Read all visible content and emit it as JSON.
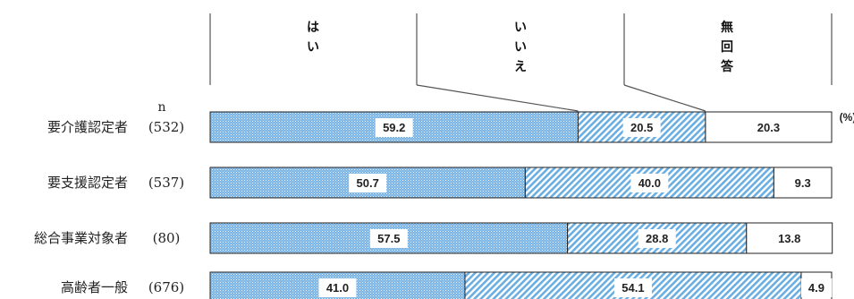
{
  "chart_data": {
    "type": "bar",
    "orientation": "horizontal",
    "stacked": true,
    "unit_label": "(%)",
    "n_header": "n",
    "categories": [
      "要介護認定者",
      "要支援認定者",
      "総合事業対象者",
      "高齢者一般"
    ],
    "n_values": [
      "(532)",
      "(537)",
      "(80)",
      "(676)"
    ],
    "series": [
      {
        "name": "はい",
        "header_lines": [
          "は",
          "い"
        ],
        "values": [
          59.2,
          50.7,
          57.5,
          41.0
        ],
        "value_labels": [
          "59.2",
          "50.7",
          "57.5",
          "41.0"
        ],
        "fill": "#7ab4e4",
        "pattern": "dots"
      },
      {
        "name": "いいえ",
        "header_lines": [
          "い",
          "い",
          "え"
        ],
        "values": [
          20.5,
          40.0,
          28.8,
          54.1
        ],
        "value_labels": [
          "20.5",
          "40.0",
          "28.8",
          "54.1"
        ],
        "fill": "#8cc0ea",
        "pattern": "diagonal"
      },
      {
        "name": "無回答",
        "header_lines": [
          "無",
          "回",
          "答"
        ],
        "values": [
          20.3,
          9.3,
          13.8,
          4.9
        ],
        "value_labels": [
          "20.3",
          "9.3",
          "13.8",
          "4.9"
        ],
        "fill": "#ffffff",
        "pattern": "none"
      }
    ],
    "xlim": [
      0,
      100
    ],
    "grid": false,
    "legend": "top"
  }
}
